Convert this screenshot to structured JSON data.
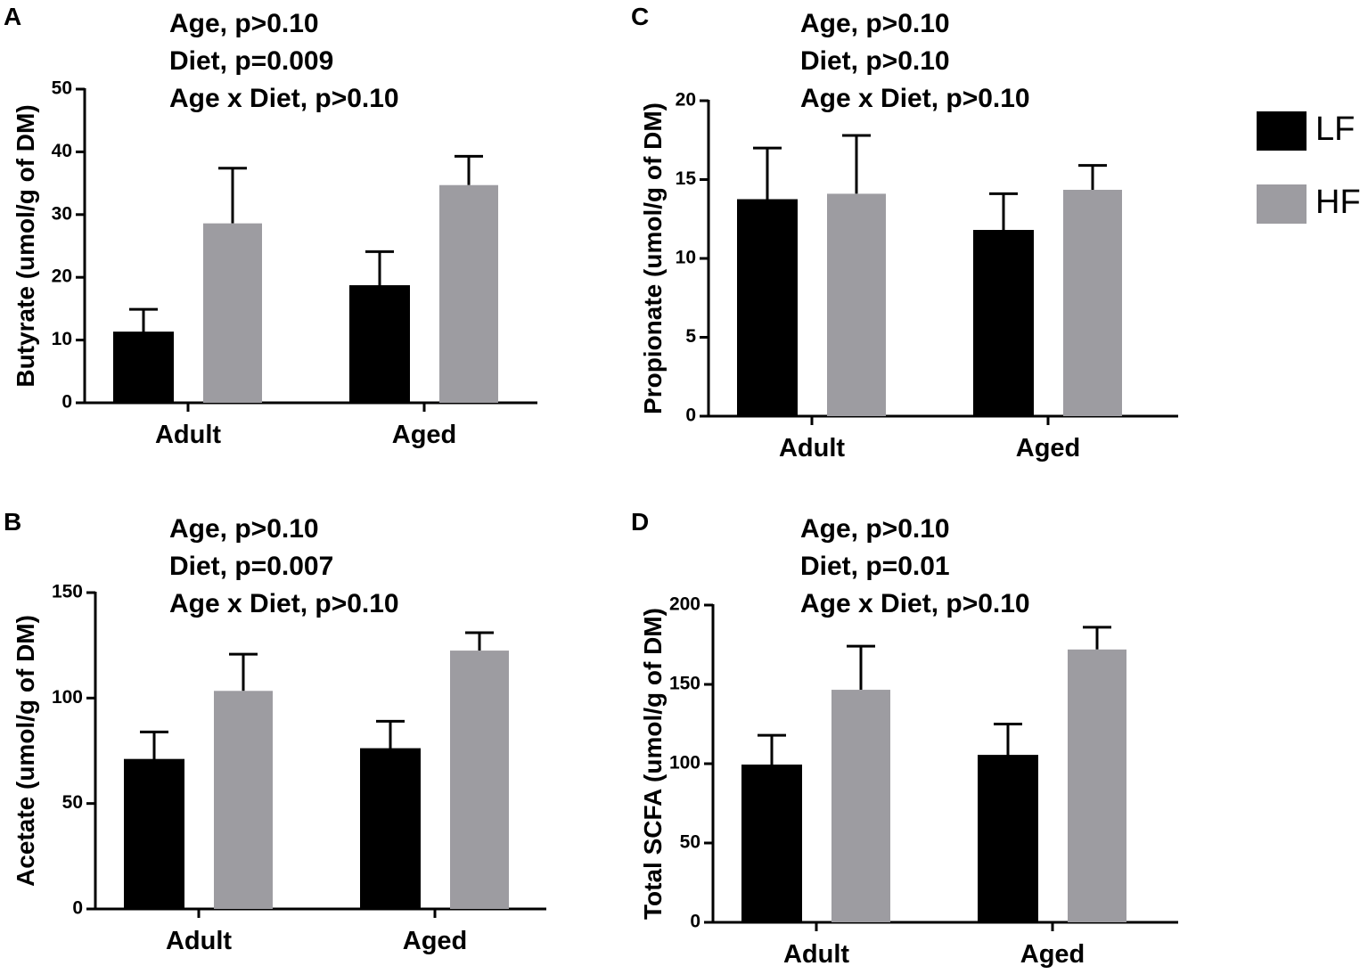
{
  "legend": [
    {
      "label": "LF",
      "color": "#000000"
    },
    {
      "label": "HF",
      "color": "#9d9ca1"
    }
  ],
  "chart_data": [
    {
      "panel": "A",
      "type": "bar",
      "ylabel": "Butyrate (umol/g of DM)",
      "categories": [
        "Adult",
        "Aged"
      ],
      "yticks": [
        0,
        10,
        20,
        30,
        40,
        50
      ],
      "ylim": [
        0,
        50
      ],
      "annotations": [
        "Age, p>0.10",
        "Diet, p=0.009",
        "Age x Diet, p>0.10"
      ],
      "series": [
        {
          "name": "LF",
          "values": [
            11.2,
            18.6
          ],
          "errors": [
            3.7,
            5.5
          ]
        },
        {
          "name": "HF",
          "values": [
            28.6,
            34.7
          ],
          "errors": [
            8.8,
            4.6
          ]
        }
      ]
    },
    {
      "panel": "B",
      "type": "bar",
      "ylabel": "Acetate (umol/g of DM)",
      "categories": [
        "Adult",
        "Aged"
      ],
      "yticks": [
        0,
        50,
        100,
        150
      ],
      "ylim": [
        0,
        150
      ],
      "annotations": [
        "Age, p>0.10",
        "Diet, p=0.007",
        "Age x Diet, p>0.10"
      ],
      "series": [
        {
          "name": "LF",
          "values": [
            70.7,
            75.8
          ],
          "errors": [
            13.2,
            13.2
          ]
        },
        {
          "name": "HF",
          "values": [
            103.4,
            122.5
          ],
          "errors": [
            17.4,
            8.5
          ]
        }
      ]
    },
    {
      "panel": "C",
      "type": "bar",
      "ylabel": "Propionate (umol/g of DM)",
      "categories": [
        "Adult",
        "Aged"
      ],
      "yticks": [
        0,
        5,
        10,
        15,
        20
      ],
      "ylim": [
        0,
        20
      ],
      "annotations": [
        "Age, p>0.10",
        "Diet, p>0.10",
        "Age x Diet, p>0.10"
      ],
      "series": [
        {
          "name": "LF",
          "values": [
            13.7,
            11.75
          ],
          "errors": [
            3.3,
            2.35
          ]
        },
        {
          "name": "HF",
          "values": [
            14.1,
            14.35
          ],
          "errors": [
            3.7,
            1.55
          ]
        }
      ]
    },
    {
      "panel": "D",
      "type": "bar",
      "ylabel": "Total SCFA (umol/g of DM)",
      "categories": [
        "Adult",
        "Aged"
      ],
      "yticks": [
        0,
        50,
        100,
        150,
        200
      ],
      "ylim": [
        0,
        200
      ],
      "annotations": [
        "Age, p>0.10",
        "Diet, p=0.01",
        "Age x Diet, p>0.10"
      ],
      "series": [
        {
          "name": "LF",
          "values": [
            98.9,
            105
          ],
          "errors": [
            19,
            20
          ]
        },
        {
          "name": "HF",
          "values": [
            146.6,
            172
          ],
          "errors": [
            27.5,
            14
          ]
        }
      ]
    }
  ]
}
